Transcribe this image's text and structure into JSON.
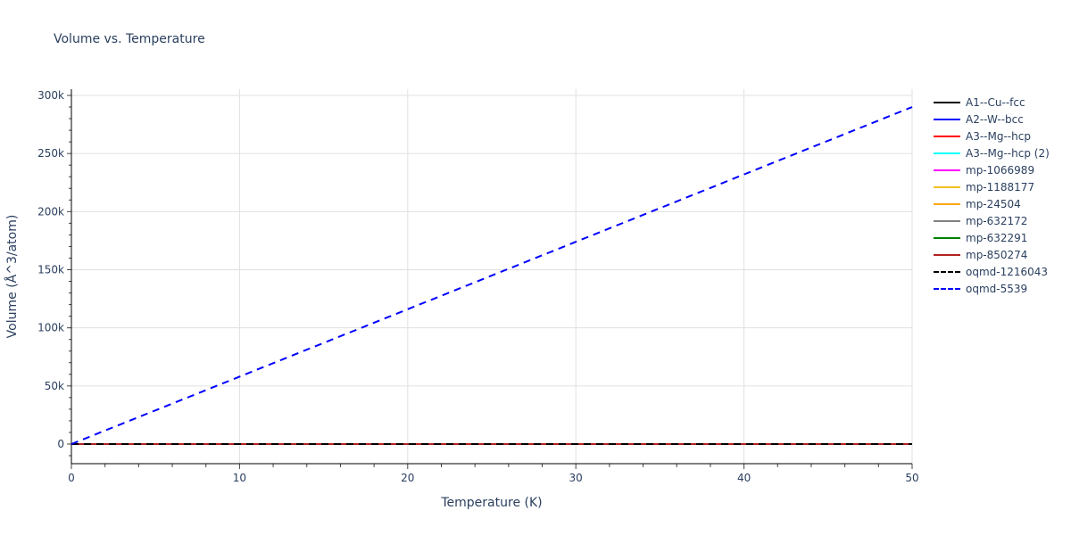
{
  "chart_data": {
    "type": "line",
    "title": "Volume vs. Temperature",
    "xlabel": "Temperature (K)",
    "ylabel": "Volume (Å^3/atom)",
    "xlim": [
      0,
      50
    ],
    "ylim": [
      -16000,
      305000
    ],
    "x_ticks": [
      "0",
      "10",
      "20",
      "30",
      "40",
      "50"
    ],
    "y_ticks": [
      "0",
      "50k",
      "100k",
      "150k",
      "200k",
      "250k",
      "300k"
    ],
    "grid": true,
    "legend_position": "right",
    "series": [
      {
        "name": "A1--Cu--fcc",
        "color": "#000000",
        "dash": "solid",
        "x": [
          0,
          50
        ],
        "y": [
          0,
          0
        ]
      },
      {
        "name": "A2--W--bcc",
        "color": "#0000ff",
        "dash": "solid",
        "x": [
          0,
          50
        ],
        "y": [
          0,
          0
        ]
      },
      {
        "name": "A3--Mg--hcp",
        "color": "#ff0000",
        "dash": "solid",
        "x": [
          0,
          50
        ],
        "y": [
          0,
          0
        ]
      },
      {
        "name": "A3--Mg--hcp (2)",
        "color": "#00ffff",
        "dash": "solid",
        "x": [
          0,
          50
        ],
        "y": [
          0,
          0
        ]
      },
      {
        "name": "mp-1066989",
        "color": "#ff00ff",
        "dash": "solid",
        "x": [
          0,
          50
        ],
        "y": [
          0,
          0
        ]
      },
      {
        "name": "mp-1188177",
        "color": "#f0c020",
        "dash": "solid",
        "x": [
          0,
          50
        ],
        "y": [
          0,
          0
        ]
      },
      {
        "name": "mp-24504",
        "color": "#ffa500",
        "dash": "solid",
        "x": [
          0,
          50
        ],
        "y": [
          0,
          0
        ]
      },
      {
        "name": "mp-632172",
        "color": "#808080",
        "dash": "solid",
        "x": [
          0,
          50
        ],
        "y": [
          0,
          0
        ]
      },
      {
        "name": "mp-632291",
        "color": "#008000",
        "dash": "solid",
        "x": [
          0,
          50
        ],
        "y": [
          0,
          0
        ]
      },
      {
        "name": "mp-850274",
        "color": "#b22222",
        "dash": "solid",
        "x": [
          0,
          50
        ],
        "y": [
          0,
          0
        ]
      },
      {
        "name": "oqmd-1216043",
        "color": "#000000",
        "dash": "dash",
        "x": [
          0,
          50
        ],
        "y": [
          0,
          0
        ]
      },
      {
        "name": "oqmd-5539",
        "color": "#0000ff",
        "dash": "dash",
        "x": [
          0,
          10,
          20,
          30,
          40,
          50
        ],
        "y": [
          0,
          58000,
          116000,
          174000,
          232000,
          290000
        ]
      }
    ]
  }
}
